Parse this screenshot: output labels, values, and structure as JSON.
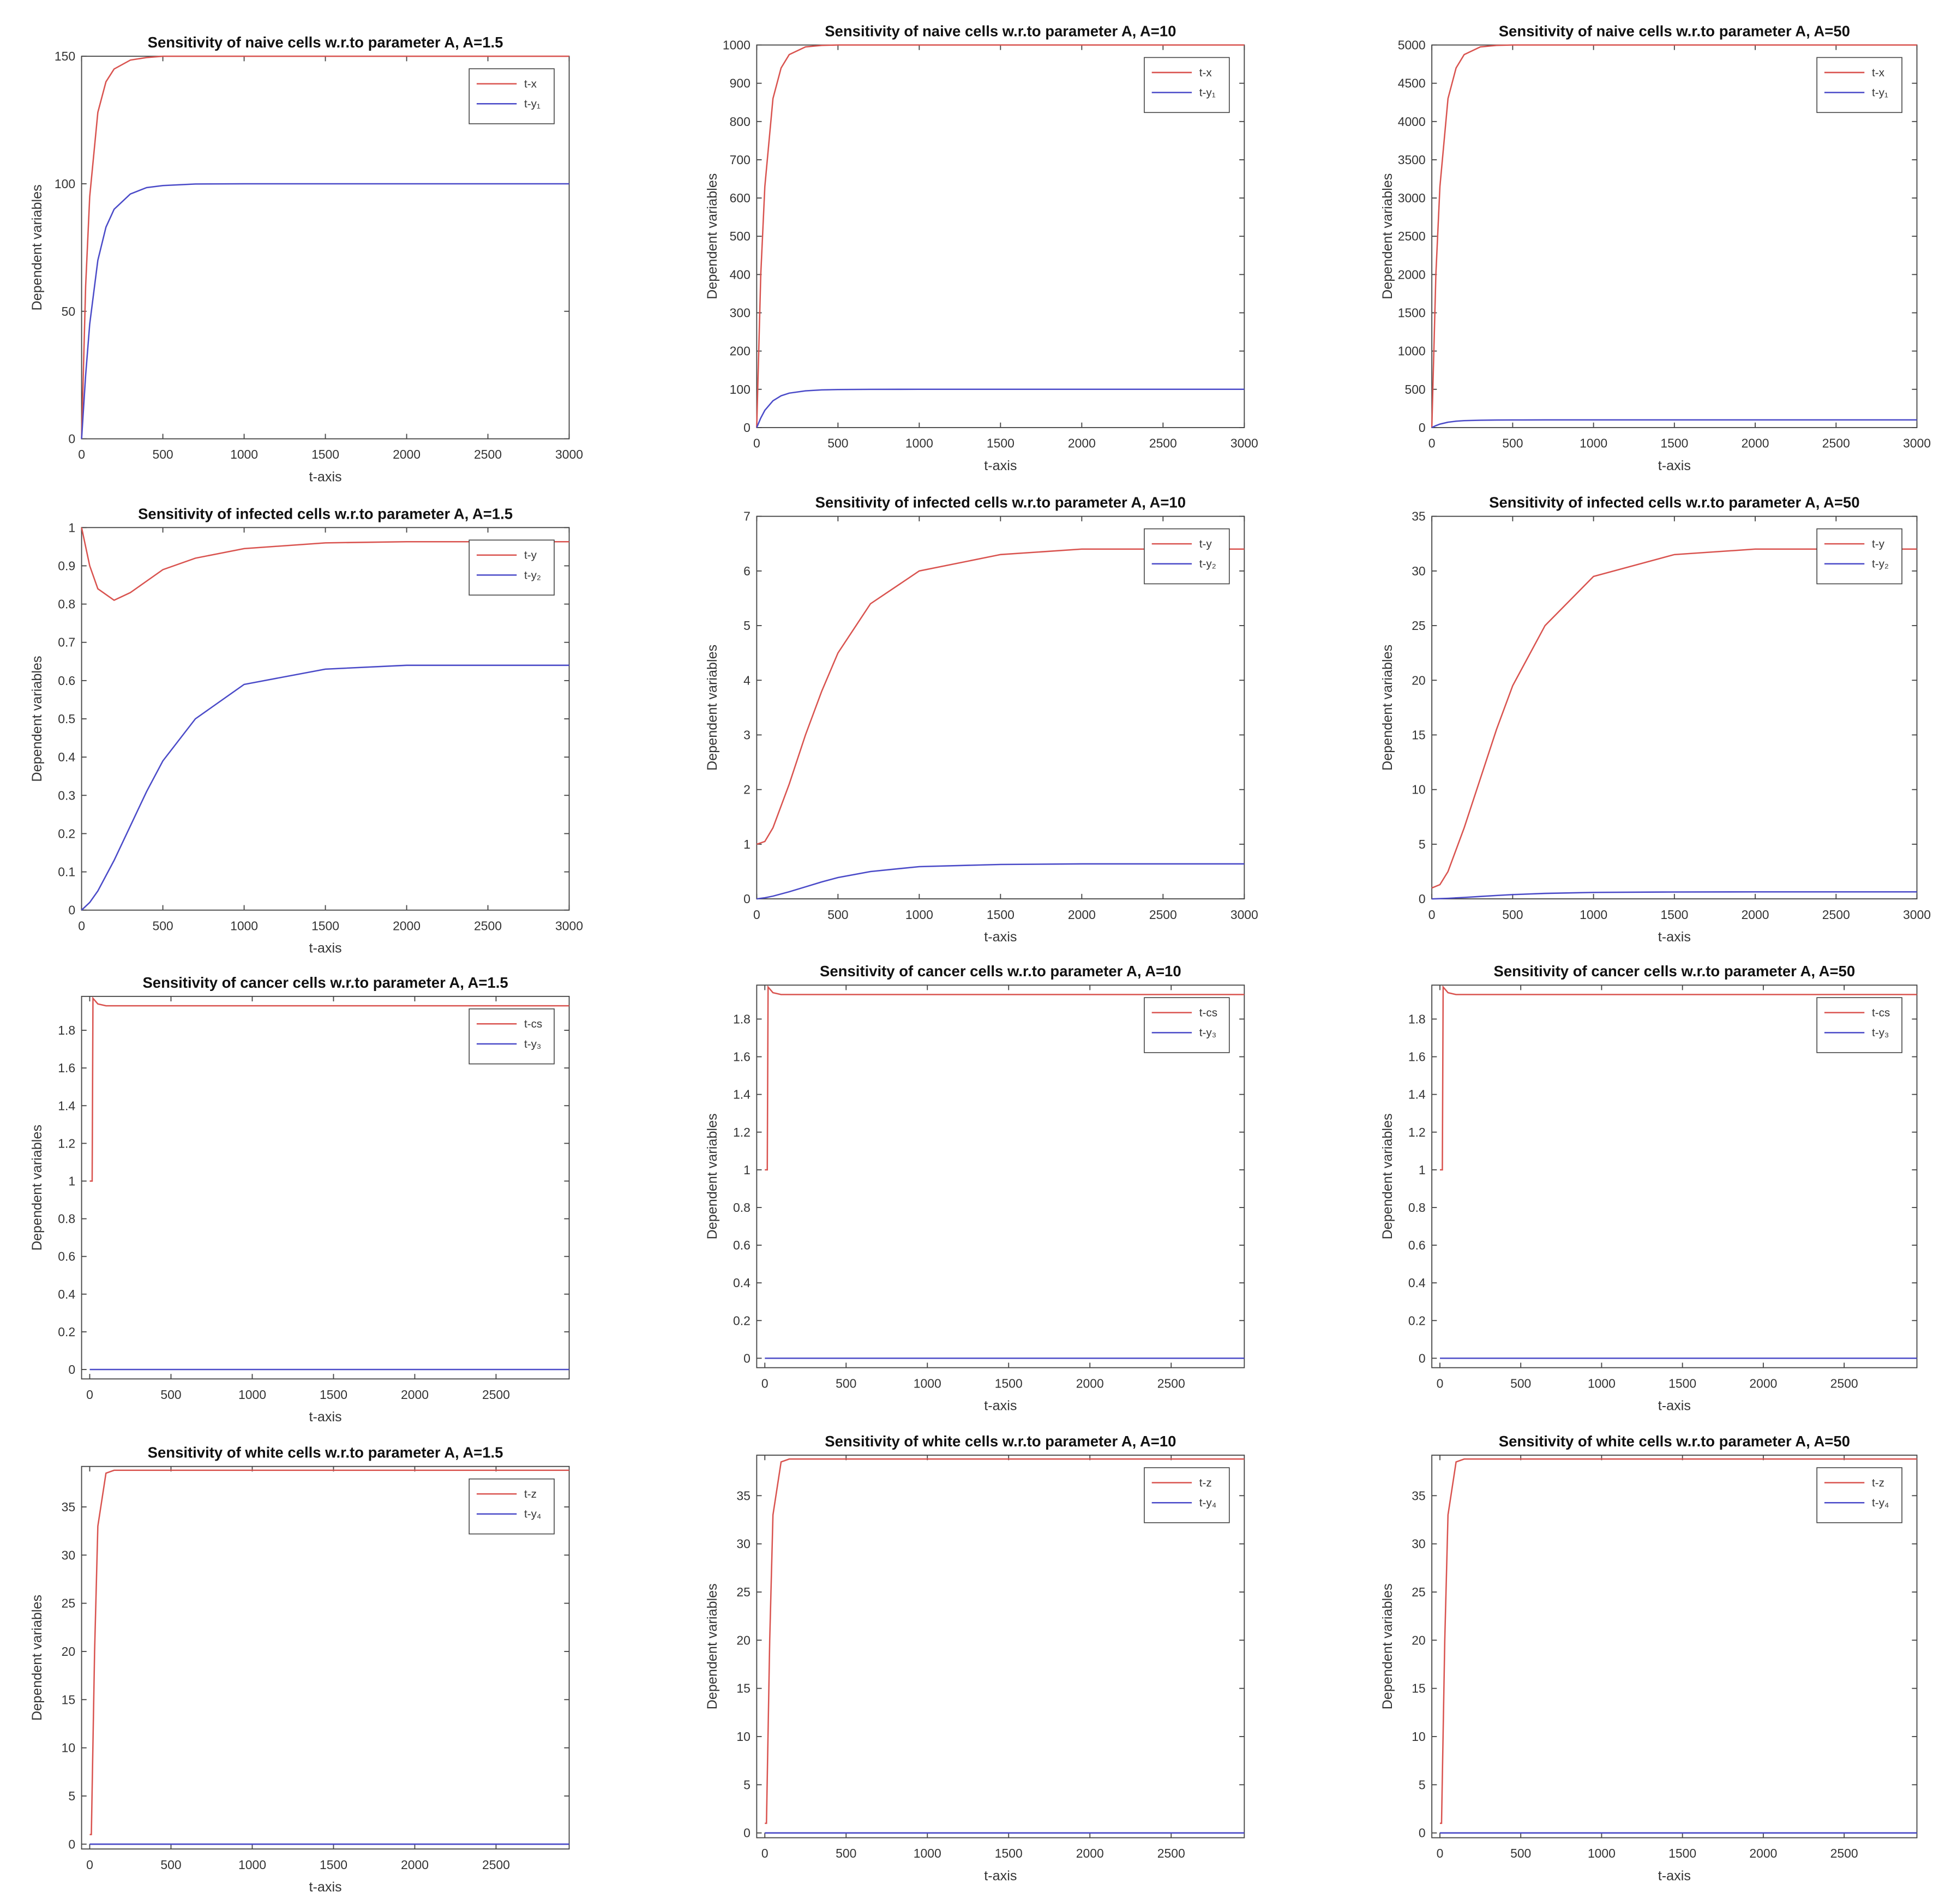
{
  "chart_data": [
    {
      "type": "line",
      "title": "Sensitivity of naive cells w.r.to parameter A, A=1.5",
      "xlabel": "t-axis",
      "ylabel": "Dependent variables",
      "legend": "upper right",
      "grid": false,
      "x": [
        0,
        25,
        50,
        100,
        150,
        200,
        300,
        400,
        500,
        700,
        1000,
        1500,
        2000,
        3000
      ],
      "xlim": [
        0,
        3000
      ],
      "xticks": [
        0,
        500,
        1000,
        1500,
        2000,
        2500,
        3000
      ],
      "ylim": [
        0,
        150
      ],
      "yticks": [
        0,
        50,
        100,
        150
      ],
      "series": [
        {
          "name": "t-x",
          "color": "#d9534f",
          "values": [
            0,
            60,
            95,
            128,
            140,
            145,
            148.5,
            149.5,
            150,
            150,
            150,
            150,
            150,
            150
          ]
        },
        {
          "name": "t-y₁",
          "color": "#4a4ac8",
          "values": [
            0,
            25,
            45,
            70,
            83,
            90,
            96,
            98.5,
            99.3,
            99.9,
            100,
            100,
            100,
            100
          ]
        }
      ]
    },
    {
      "type": "line",
      "title": "Sensitivity of naive cells w.r.to parameter A, A=10",
      "xlabel": "t-axis",
      "ylabel": "Dependent variables",
      "legend": "upper right",
      "grid": false,
      "x": [
        0,
        25,
        50,
        100,
        150,
        200,
        300,
        400,
        500,
        700,
        1000,
        1500,
        2000,
        3000
      ],
      "xlim": [
        0,
        3000
      ],
      "xticks": [
        0,
        500,
        1000,
        1500,
        2000,
        2500,
        3000
      ],
      "ylim": [
        0,
        1000
      ],
      "yticks": [
        0,
        100,
        200,
        300,
        400,
        500,
        600,
        700,
        800,
        900,
        1000
      ],
      "series": [
        {
          "name": "t-x",
          "color": "#d9534f",
          "values": [
            0,
            400,
            630,
            860,
            940,
            975,
            995,
            999,
            1000,
            1000,
            1000,
            1000,
            1000,
            1000
          ]
        },
        {
          "name": "t-y₁",
          "color": "#4a4ac8",
          "values": [
            0,
            25,
            45,
            70,
            83,
            90,
            96,
            98.5,
            99.3,
            99.9,
            100,
            100,
            100,
            100
          ]
        }
      ]
    },
    {
      "type": "line",
      "title": "Sensitivity of naive cells w.r.to parameter A, A=50",
      "xlabel": "t-axis",
      "ylabel": "Dependent variables",
      "legend": "upper right",
      "grid": false,
      "x": [
        0,
        25,
        50,
        100,
        150,
        200,
        300,
        400,
        500,
        700,
        1000,
        1500,
        2000,
        3000
      ],
      "xlim": [
        0,
        3000
      ],
      "xticks": [
        0,
        500,
        1000,
        1500,
        2000,
        2500,
        3000
      ],
      "ylim": [
        0,
        5000
      ],
      "yticks": [
        0,
        500,
        1000,
        1500,
        2000,
        2500,
        3000,
        3500,
        4000,
        4500,
        5000
      ],
      "series": [
        {
          "name": "t-x",
          "color": "#d9534f",
          "values": [
            0,
            2000,
            3150,
            4300,
            4700,
            4875,
            4975,
            4995,
            5000,
            5000,
            5000,
            5000,
            5000,
            5000
          ]
        },
        {
          "name": "t-y₁",
          "color": "#4a4ac8",
          "values": [
            0,
            25,
            45,
            70,
            83,
            90,
            96,
            98.5,
            99.3,
            99.9,
            100,
            100,
            100,
            100
          ]
        }
      ]
    },
    {
      "type": "line",
      "title": "Sensitivity of infected cells w.r.to parameter A, A=1.5",
      "xlabel": "t-axis",
      "ylabel": "Dependent variables",
      "legend": "upper right",
      "grid": false,
      "x": [
        0,
        50,
        100,
        200,
        300,
        400,
        500,
        700,
        1000,
        1500,
        2000,
        3000
      ],
      "xlim": [
        0,
        3000
      ],
      "xticks": [
        0,
        500,
        1000,
        1500,
        2000,
        2500,
        3000
      ],
      "ylim": [
        0,
        1
      ],
      "yticks": [
        0,
        0.1,
        0.2,
        0.3,
        0.4,
        0.5,
        0.6,
        0.7,
        0.8,
        0.9,
        1
      ],
      "series": [
        {
          "name": "t-y",
          "color": "#d9534f",
          "values": [
            1,
            0.9,
            0.84,
            0.81,
            0.83,
            0.86,
            0.89,
            0.92,
            0.945,
            0.96,
            0.963,
            0.963
          ]
        },
        {
          "name": "t-y₂",
          "color": "#4a4ac8",
          "values": [
            0,
            0.02,
            0.05,
            0.13,
            0.22,
            0.31,
            0.39,
            0.5,
            0.59,
            0.63,
            0.64,
            0.64
          ]
        }
      ]
    },
    {
      "type": "line",
      "title": "Sensitivity of infected cells w.r.to parameter A, A=10",
      "xlabel": "t-axis",
      "ylabel": "Dependent variables",
      "legend": "upper right",
      "grid": false,
      "x": [
        0,
        50,
        100,
        200,
        300,
        400,
        500,
        700,
        1000,
        1500,
        2000,
        3000
      ],
      "xlim": [
        0,
        3000
      ],
      "xticks": [
        0,
        500,
        1000,
        1500,
        2000,
        2500,
        3000
      ],
      "ylim": [
        0,
        7
      ],
      "yticks": [
        0,
        1,
        2,
        3,
        4,
        5,
        6,
        7
      ],
      "series": [
        {
          "name": "t-y",
          "color": "#d9534f",
          "values": [
            1,
            1.05,
            1.3,
            2.1,
            3.0,
            3.8,
            4.5,
            5.4,
            6.0,
            6.3,
            6.4,
            6.4
          ]
        },
        {
          "name": "t-y₂",
          "color": "#4a4ac8",
          "values": [
            0,
            0.02,
            0.05,
            0.13,
            0.22,
            0.31,
            0.39,
            0.5,
            0.59,
            0.63,
            0.64,
            0.64
          ]
        }
      ]
    },
    {
      "type": "line",
      "title": "Sensitivity of infected cells w.r.to parameter A, A=50",
      "xlabel": "t-axis",
      "ylabel": "Dependent variables",
      "legend": "upper right",
      "grid": false,
      "x": [
        0,
        50,
        100,
        200,
        300,
        400,
        500,
        700,
        1000,
        1500,
        2000,
        3000
      ],
      "xlim": [
        0,
        3000
      ],
      "xticks": [
        0,
        500,
        1000,
        1500,
        2000,
        2500,
        3000
      ],
      "ylim": [
        0,
        35
      ],
      "yticks": [
        0,
        5,
        10,
        15,
        20,
        25,
        30,
        35
      ],
      "series": [
        {
          "name": "t-y",
          "color": "#d9534f",
          "values": [
            1,
            1.3,
            2.5,
            6.5,
            11,
            15.5,
            19.5,
            25,
            29.5,
            31.5,
            32,
            32
          ]
        },
        {
          "name": "t-y₂",
          "color": "#4a4ac8",
          "values": [
            0,
            0.02,
            0.05,
            0.13,
            0.22,
            0.31,
            0.39,
            0.5,
            0.59,
            0.63,
            0.64,
            0.64
          ]
        }
      ]
    },
    {
      "type": "line",
      "title": "Sensitivity of cancer cells w.r.to parameter A, A=1.5",
      "xlabel": "t-axis",
      "ylabel": "Dependent variables",
      "legend": "upper right",
      "grid": false,
      "x": [
        0,
        15,
        20,
        50,
        100,
        2950
      ],
      "xlim": [
        -50,
        2950
      ],
      "xticks": [
        0,
        500,
        1000,
        1500,
        2000,
        2500
      ],
      "ylim": [
        -0.05,
        1.98
      ],
      "yticks": [
        0,
        0.2,
        0.4,
        0.6,
        0.8,
        1,
        1.2,
        1.4,
        1.6,
        1.8
      ],
      "series": [
        {
          "name": "t-cs",
          "color": "#d9534f",
          "values": [
            1,
            1,
            1.97,
            1.94,
            1.93,
            1.93
          ]
        },
        {
          "name": "t-y₃",
          "color": "#4a4ac8",
          "values": [
            0,
            0,
            0,
            0,
            0,
            0
          ]
        }
      ]
    },
    {
      "type": "line",
      "title": "Sensitivity of cancer cells w.r.to parameter A, A=10",
      "xlabel": "t-axis",
      "ylabel": "Dependent variables",
      "legend": "upper right",
      "grid": false,
      "x": [
        0,
        15,
        20,
        50,
        100,
        2950
      ],
      "xlim": [
        -50,
        2950
      ],
      "xticks": [
        0,
        500,
        1000,
        1500,
        2000,
        2500
      ],
      "ylim": [
        -0.05,
        1.98
      ],
      "yticks": [
        0,
        0.2,
        0.4,
        0.6,
        0.8,
        1,
        1.2,
        1.4,
        1.6,
        1.8
      ],
      "series": [
        {
          "name": "t-cs",
          "color": "#d9534f",
          "values": [
            1,
            1,
            1.97,
            1.94,
            1.93,
            1.93
          ]
        },
        {
          "name": "t-y₃",
          "color": "#4a4ac8",
          "values": [
            0,
            0,
            0,
            0,
            0,
            0
          ]
        }
      ]
    },
    {
      "type": "line",
      "title": "Sensitivity of cancer cells w.r.to parameter A, A=50",
      "xlabel": "t-axis",
      "ylabel": "Dependent variables",
      "legend": "upper right",
      "grid": false,
      "x": [
        0,
        15,
        20,
        50,
        100,
        2950
      ],
      "xlim": [
        -50,
        2950
      ],
      "xticks": [
        0,
        500,
        1000,
        1500,
        2000,
        2500
      ],
      "ylim": [
        -0.05,
        1.98
      ],
      "yticks": [
        0,
        0.2,
        0.4,
        0.6,
        0.8,
        1,
        1.2,
        1.4,
        1.6,
        1.8
      ],
      "series": [
        {
          "name": "t-cs",
          "color": "#d9534f",
          "values": [
            1,
            1,
            1.97,
            1.94,
            1.93,
            1.93
          ]
        },
        {
          "name": "t-y₃",
          "color": "#4a4ac8",
          "values": [
            0,
            0,
            0,
            0,
            0,
            0
          ]
        }
      ]
    },
    {
      "type": "line",
      "title": "Sensitivity of white cells w.r.to parameter A, A=1.5",
      "xlabel": "t-axis",
      "ylabel": "Dependent variables",
      "legend": "upper right",
      "grid": false,
      "x": [
        0,
        10,
        30,
        50,
        100,
        150,
        2950
      ],
      "xlim": [
        -50,
        2950
      ],
      "xticks": [
        0,
        500,
        1000,
        1500,
        2000,
        2500
      ],
      "ylim": [
        -0.5,
        39.2
      ],
      "yticks": [
        0,
        5,
        10,
        15,
        20,
        25,
        30,
        35
      ],
      "series": [
        {
          "name": "t-z",
          "color": "#d9534f",
          "values": [
            1,
            1,
            20,
            33,
            38.5,
            38.8,
            38.8
          ]
        },
        {
          "name": "t-y₄",
          "color": "#4a4ac8",
          "values": [
            0,
            0,
            0,
            0,
            0,
            0,
            0
          ]
        }
      ]
    },
    {
      "type": "line",
      "title": "Sensitivity of white cells w.r.to parameter A, A=10",
      "xlabel": "t-axis",
      "ylabel": "Dependent variables",
      "legend": "upper right",
      "grid": false,
      "x": [
        0,
        10,
        30,
        50,
        100,
        150,
        2950
      ],
      "xlim": [
        -50,
        2950
      ],
      "xticks": [
        0,
        500,
        1000,
        1500,
        2000,
        2500
      ],
      "ylim": [
        -0.5,
        39.2
      ],
      "yticks": [
        0,
        5,
        10,
        15,
        20,
        25,
        30,
        35
      ],
      "series": [
        {
          "name": "t-z",
          "color": "#d9534f",
          "values": [
            1,
            1,
            20,
            33,
            38.5,
            38.8,
            38.8
          ]
        },
        {
          "name": "t-y₄",
          "color": "#4a4ac8",
          "values": [
            0,
            0,
            0,
            0,
            0,
            0,
            0
          ]
        }
      ]
    },
    {
      "type": "line",
      "title": "Sensitivity of white cells w.r.to parameter A, A=50",
      "xlabel": "t-axis",
      "ylabel": "Dependent variables",
      "legend": "upper right",
      "grid": false,
      "x": [
        0,
        10,
        30,
        50,
        100,
        150,
        2950
      ],
      "xlim": [
        -50,
        2950
      ],
      "xticks": [
        0,
        500,
        1000,
        1500,
        2000,
        2500
      ],
      "ylim": [
        -0.5,
        39.2
      ],
      "yticks": [
        0,
        5,
        10,
        15,
        20,
        25,
        30,
        35
      ],
      "series": [
        {
          "name": "t-z",
          "color": "#d9534f",
          "values": [
            1,
            1,
            20,
            33,
            38.5,
            38.8,
            38.8
          ]
        },
        {
          "name": "t-y₄",
          "color": "#4a4ac8",
          "values": [
            0,
            0,
            0,
            0,
            0,
            0,
            0
          ]
        }
      ]
    }
  ]
}
